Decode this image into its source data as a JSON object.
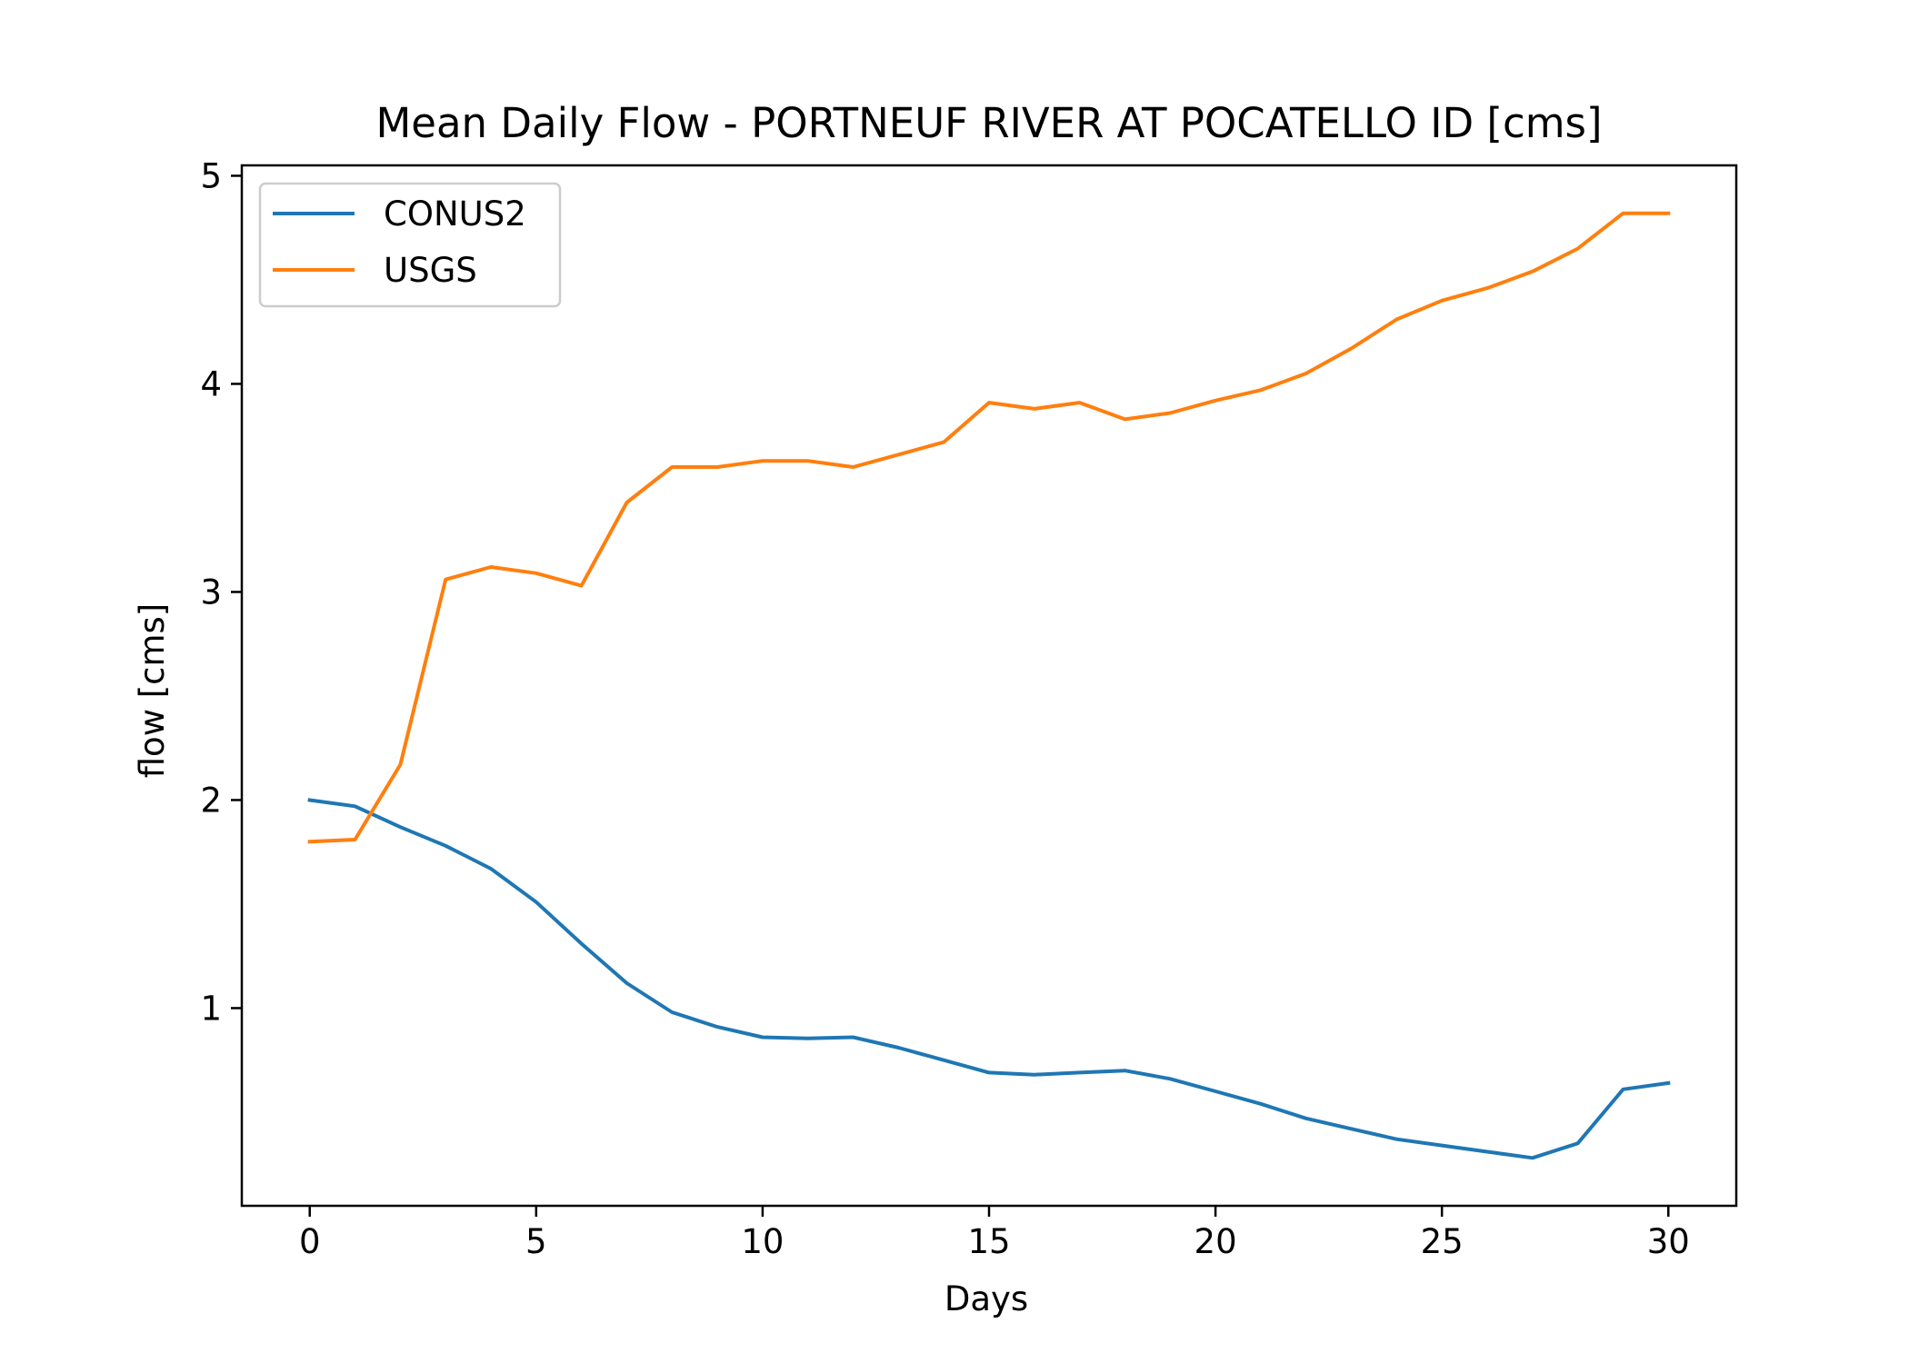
{
  "chart_data": {
    "type": "line",
    "title": "Mean Daily Flow - PORTNEUF RIVER AT POCATELLO ID [cms]",
    "xlabel": "Days",
    "ylabel": "flow [cms]",
    "xlim": [
      -1.5,
      31.5
    ],
    "ylim": [
      0.05,
      5.05
    ],
    "xticks": [
      0,
      5,
      10,
      15,
      20,
      25,
      30
    ],
    "yticks": [
      1,
      2,
      3,
      4,
      5
    ],
    "grid": false,
    "legend_position": "upper-left",
    "x": [
      0,
      1,
      2,
      3,
      4,
      5,
      6,
      7,
      8,
      9,
      10,
      11,
      12,
      13,
      14,
      15,
      16,
      17,
      18,
      19,
      20,
      21,
      22,
      23,
      24,
      25,
      26,
      27,
      28,
      29,
      30
    ],
    "series": [
      {
        "name": "CONUS2",
        "color": "#1f77b4",
        "values": [
          2.0,
          1.97,
          1.87,
          1.78,
          1.67,
          1.51,
          1.31,
          1.12,
          0.98,
          0.91,
          0.86,
          0.855,
          0.86,
          0.81,
          0.75,
          0.69,
          0.68,
          0.69,
          0.7,
          0.66,
          0.6,
          0.54,
          0.47,
          0.42,
          0.37,
          0.34,
          0.31,
          0.28,
          0.35,
          0.61,
          0.64
        ]
      },
      {
        "name": "USGS",
        "color": "#ff7f0e",
        "values": [
          1.8,
          1.81,
          2.17,
          3.06,
          3.12,
          3.09,
          3.03,
          3.43,
          3.6,
          3.6,
          3.63,
          3.63,
          3.6,
          3.66,
          3.72,
          3.91,
          3.88,
          3.91,
          3.83,
          3.86,
          3.92,
          3.97,
          4.05,
          4.17,
          4.31,
          4.4,
          4.46,
          4.54,
          4.65,
          4.82,
          4.82
        ]
      }
    ]
  }
}
